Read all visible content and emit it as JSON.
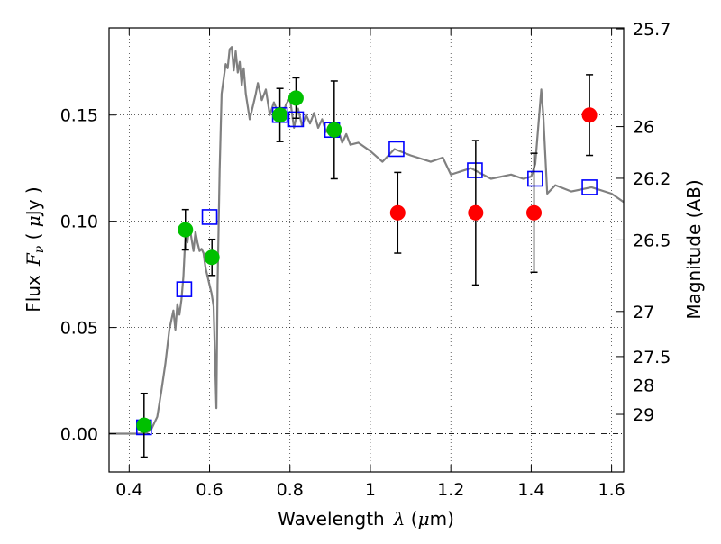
{
  "chart_data": {
    "type": "scatter",
    "title": "",
    "xlabel": {
      "prefix": "Wavelength",
      "symbol": "λ",
      "unit_open": " (",
      "unit_symbol": "μ",
      "unit_rest": "m)"
    },
    "ylabel": {
      "prefix": "Flux",
      "symbol": "F",
      "subscript": "ν",
      "unit_open": " ( ",
      "unit_symbol": "μ",
      "unit_rest": "Jy )"
    },
    "y2label": "Magnitude (AB)",
    "xlim": [
      0.35,
      1.63
    ],
    "ylim": [
      -0.018,
      0.191
    ],
    "grid": true,
    "xticks": [
      0.4,
      0.6,
      0.8,
      1.0,
      1.2,
      1.4,
      1.6
    ],
    "xtick_labels": [
      "0.4",
      "0.6",
      "0.8",
      "1",
      "1.2",
      "1.4",
      "1.6"
    ],
    "yticks": [
      0.0,
      0.05,
      0.1,
      0.15
    ],
    "ytick_labels": [
      "0.00",
      "0.05",
      "0.10",
      "0.15"
    ],
    "y2ticks": [
      {
        "label": "25.7",
        "mag": 25.7
      },
      {
        "label": "26",
        "mag": 26.0
      },
      {
        "label": "26.2",
        "mag": 26.2
      },
      {
        "label": "26.5",
        "mag": 26.5
      },
      {
        "label": "27",
        "mag": 27.0
      },
      {
        "label": "27.5",
        "mag": 27.5
      },
      {
        "label": "28",
        "mag": 28.0
      },
      {
        "label": "29",
        "mag": 29.0
      }
    ],
    "model_sed": {
      "color": "#808080",
      "x": [
        0.35,
        0.44,
        0.455,
        0.47,
        0.48,
        0.49,
        0.5,
        0.51,
        0.515,
        0.52,
        0.525,
        0.53,
        0.535,
        0.54,
        0.545,
        0.55,
        0.555,
        0.56,
        0.565,
        0.57,
        0.575,
        0.58,
        0.585,
        0.59,
        0.6,
        0.605,
        0.61,
        0.613,
        0.617,
        0.62,
        0.625,
        0.63,
        0.64,
        0.645,
        0.65,
        0.655,
        0.66,
        0.665,
        0.67,
        0.675,
        0.68,
        0.685,
        0.69,
        0.7,
        0.71,
        0.715,
        0.72,
        0.73,
        0.74,
        0.75,
        0.76,
        0.77,
        0.78,
        0.79,
        0.8,
        0.81,
        0.82,
        0.83,
        0.84,
        0.85,
        0.86,
        0.87,
        0.88,
        0.89,
        0.9,
        0.91,
        0.92,
        0.93,
        0.94,
        0.95,
        0.97,
        1.0,
        1.03,
        1.06,
        1.1,
        1.15,
        1.18,
        1.2,
        1.25,
        1.3,
        1.35,
        1.38,
        1.4,
        1.41,
        1.42,
        1.425,
        1.43,
        1.44,
        1.46,
        1.5,
        1.55,
        1.6,
        1.63
      ],
      "y": [
        0.0,
        0.0,
        0.002,
        0.008,
        0.02,
        0.033,
        0.049,
        0.058,
        0.049,
        0.061,
        0.056,
        0.063,
        0.074,
        0.094,
        0.09,
        0.098,
        0.092,
        0.086,
        0.095,
        0.09,
        0.086,
        0.087,
        0.085,
        0.078,
        0.07,
        0.066,
        0.06,
        0.04,
        0.012,
        0.07,
        0.124,
        0.16,
        0.174,
        0.172,
        0.181,
        0.182,
        0.171,
        0.18,
        0.17,
        0.175,
        0.164,
        0.172,
        0.16,
        0.148,
        0.156,
        0.16,
        0.165,
        0.157,
        0.162,
        0.15,
        0.156,
        0.151,
        0.148,
        0.155,
        0.158,
        0.144,
        0.153,
        0.145,
        0.15,
        0.146,
        0.151,
        0.144,
        0.148,
        0.142,
        0.146,
        0.141,
        0.143,
        0.137,
        0.141,
        0.136,
        0.137,
        0.133,
        0.128,
        0.134,
        0.131,
        0.128,
        0.13,
        0.122,
        0.125,
        0.12,
        0.122,
        0.12,
        0.121,
        0.127,
        0.15,
        0.162,
        0.15,
        0.113,
        0.117,
        0.114,
        0.116,
        0.113,
        0.109
      ]
    },
    "series": [
      {
        "marker": "open-square",
        "color": "#0000ff",
        "x": [
          0.437,
          0.537,
          0.6,
          0.775,
          0.815,
          0.905,
          1.065,
          1.26,
          1.41,
          1.545
        ],
        "y": [
          0.003,
          0.068,
          0.102,
          0.15,
          0.148,
          0.143,
          0.134,
          0.124,
          0.12,
          0.116
        ]
      },
      {
        "marker": "filled-circle",
        "color": "#00c000",
        "x": [
          0.437,
          0.54,
          0.606,
          0.775,
          0.815,
          0.91
        ],
        "y": [
          0.004,
          0.096,
          0.083,
          0.15,
          0.158,
          0.143
        ],
        "err": [
          0.015,
          0.0095,
          0.0085,
          0.0125,
          0.0095,
          0.023
        ]
      },
      {
        "marker": "filled-circle",
        "color": "#ff0000",
        "x": [
          1.068,
          1.262,
          1.407,
          1.545
        ],
        "y": [
          0.104,
          0.104,
          0.104,
          0.15
        ],
        "err": [
          0.019,
          0.034,
          0.028,
          0.019
        ]
      }
    ]
  }
}
